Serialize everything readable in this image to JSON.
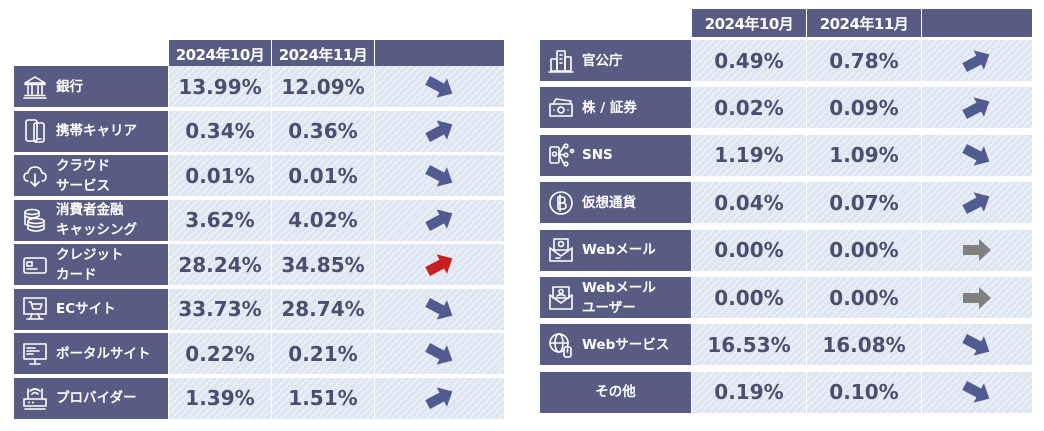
{
  "chart_data": [
    {
      "type": "table",
      "columns": [
        "2024年10月",
        "2024年11月"
      ],
      "rows": [
        {
          "label_lines": [
            "銀行"
          ],
          "icon": "bank-icon",
          "oct": "13.99%",
          "nov": "12.09%",
          "trend": "down",
          "trend_color": "#525b91"
        },
        {
          "label_lines": [
            "携帯キャリア"
          ],
          "icon": "smartphone-icon",
          "oct": "0.34%",
          "nov": "0.36%",
          "trend": "up",
          "trend_color": "#525b91"
        },
        {
          "label_lines": [
            "クラウド",
            "サービス"
          ],
          "icon": "cloud-icon",
          "oct": "0.01%",
          "nov": "0.01%",
          "trend": "down",
          "trend_color": "#525b91"
        },
        {
          "label_lines": [
            "消費者金融",
            "キャッシング"
          ],
          "icon": "coins-icon",
          "oct": "3.62%",
          "nov": "4.02%",
          "trend": "up",
          "trend_color": "#525b91"
        },
        {
          "label_lines": [
            "クレジット",
            "カード"
          ],
          "icon": "credit-card-icon",
          "oct": "28.24%",
          "nov": "34.85%",
          "trend": "up",
          "trend_color": "#c81e1e"
        },
        {
          "label_lines": [
            "ECサイト"
          ],
          "icon": "shopping-cart-icon",
          "oct": "33.73%",
          "nov": "28.74%",
          "trend": "down",
          "trend_color": "#525b91"
        },
        {
          "label_lines": [
            "ポータルサイト"
          ],
          "icon": "monitor-icon",
          "oct": "0.22%",
          "nov": "0.21%",
          "trend": "down",
          "trend_color": "#525b91"
        },
        {
          "label_lines": [
            "プロバイダー"
          ],
          "icon": "router-icon",
          "oct": "1.39%",
          "nov": "1.51%",
          "trend": "up",
          "trend_color": "#525b91"
        }
      ]
    },
    {
      "type": "table",
      "columns": [
        "2024年10月",
        "2024年11月"
      ],
      "rows": [
        {
          "label_lines": [
            "官公庁"
          ],
          "icon": "government-building-icon",
          "oct": "0.49%",
          "nov": "0.78%",
          "trend": "up",
          "trend_color": "#525b91"
        },
        {
          "label_lines": [
            "株 / 証券"
          ],
          "icon": "banknote-icon",
          "oct": "0.02%",
          "nov": "0.09%",
          "trend": "up",
          "trend_color": "#525b91"
        },
        {
          "label_lines": [
            "SNS"
          ],
          "icon": "social-network-icon",
          "oct": "1.19%",
          "nov": "1.09%",
          "trend": "down",
          "trend_color": "#525b91"
        },
        {
          "label_lines": [
            "仮想通貨"
          ],
          "icon": "bitcoin-icon",
          "oct": "0.04%",
          "nov": "0.07%",
          "trend": "up",
          "trend_color": "#525b91"
        },
        {
          "label_lines": [
            "Webメール"
          ],
          "icon": "webmail-icon",
          "oct": "0.00%",
          "nov": "0.00%",
          "trend": "flat",
          "trend_color": "#808080"
        },
        {
          "label_lines": [
            "Webメール",
            "ユーザー"
          ],
          "icon": "mail-user-icon",
          "oct": "0.00%",
          "nov": "0.00%",
          "trend": "flat",
          "trend_color": "#808080"
        },
        {
          "label_lines": [
            "Webサービス"
          ],
          "icon": "web-service-icon",
          "oct": "16.53%",
          "nov": "16.08%",
          "trend": "down",
          "trend_color": "#525b91"
        },
        {
          "label_lines": [
            "その他"
          ],
          "icon": "",
          "oct": "0.19%",
          "nov": "0.10%",
          "trend": "down",
          "trend_color": "#525b91"
        }
      ]
    }
  ]
}
